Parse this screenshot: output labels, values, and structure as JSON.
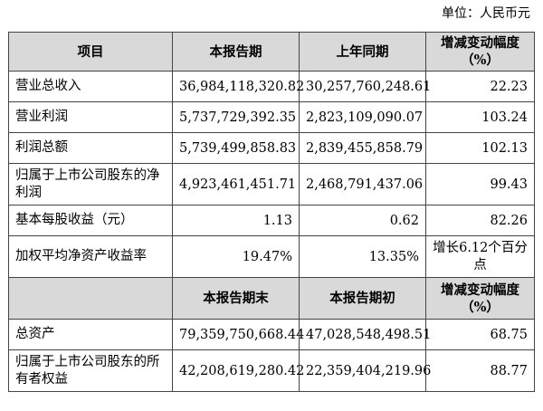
{
  "unit": "单位：人民币元",
  "header1": [
    "项目",
    "本报告期",
    "上年同期",
    "增减变动幅度（%）"
  ],
  "rows1": [
    {
      "item": "营业总收入",
      "current": "36,984,118,320.82",
      "prior": "30,257,760,248.61",
      "change": "22.23"
    },
    {
      "item": "营业利润",
      "current": "5,737,729,392.35",
      "prior": "2,823,109,090.07",
      "change": "103.24"
    },
    {
      "item": "利润总额",
      "current": "5,739,499,858.83",
      "prior": "2,839,455,858.79",
      "change": "102.13"
    },
    {
      "item": "归属于上市公司股东的净利润",
      "current": "4,923,461,451.71",
      "prior": "2,468,791,437.06",
      "change": "99.43"
    },
    {
      "item": "基本每股收益（元）",
      "current": "1.13",
      "prior": "0.62",
      "change": "82.26"
    },
    {
      "item": "加权平均净资产收益率",
      "current": "19.47%",
      "prior": "13.35%",
      "change": "增长6.12个百分点"
    }
  ],
  "header2": [
    "",
    "本报告期末",
    "本报告期初",
    "增减变动幅度（%）"
  ],
  "rows2": [
    {
      "item": "总资产",
      "end": "79,359,750,668.44",
      "begin": "47,028,548,498.51",
      "change": "68.75"
    },
    {
      "item": "归属于上市公司股东的所有者权益",
      "end": "42,208,619,280.42",
      "begin": "22,359,404,219.96",
      "change": "88.77"
    }
  ]
}
